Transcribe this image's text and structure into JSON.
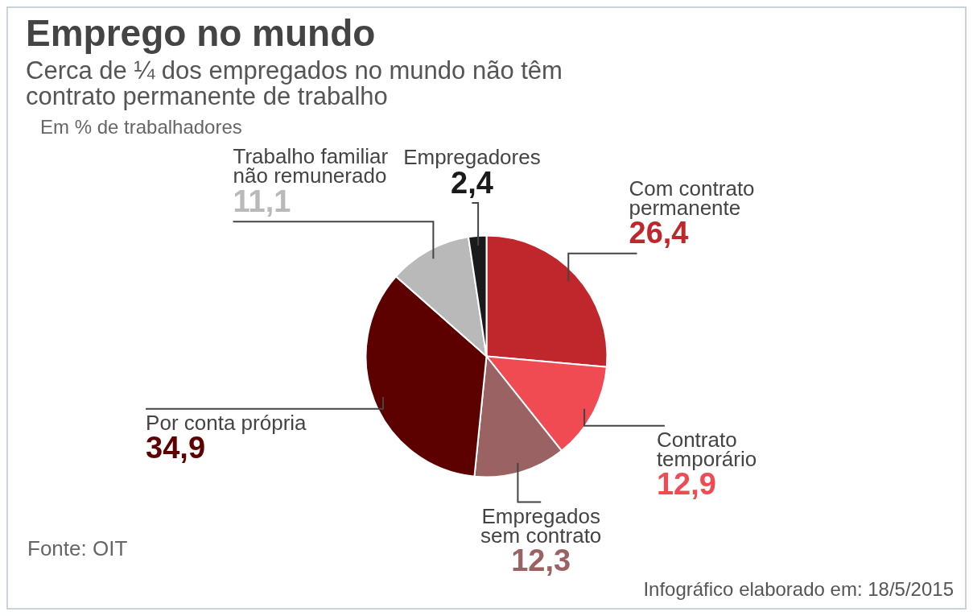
{
  "chart_data": {
    "type": "pie",
    "title": "Emprego no mundo",
    "subtitle": "Cerca de ¼ dos empregados no mundo não têm contrato permanente de trabalho",
    "categories": [
      "Com contrato permanente",
      "Contrato temporário",
      "Empregados sem contrato",
      "Por conta própria",
      "Trabalho familiar não remunerado",
      "Empregadores"
    ],
    "values": [
      26.4,
      12.9,
      12.3,
      34.9,
      11.1,
      2.4
    ],
    "colors": [
      "#c0272d",
      "#f04a52",
      "#9a6262",
      "#5c0000",
      "#b9b9b9",
      "#1a1a1a"
    ],
    "value_labels": [
      "26,4",
      "12,9",
      "12,3",
      "34,9",
      "11,1",
      "2,4"
    ],
    "annotations": [
      "Em % de trabalhadores",
      "Fonte: OIT",
      "Infográfico elaborado em: 18/5/2015"
    ],
    "legend": false
  }
}
